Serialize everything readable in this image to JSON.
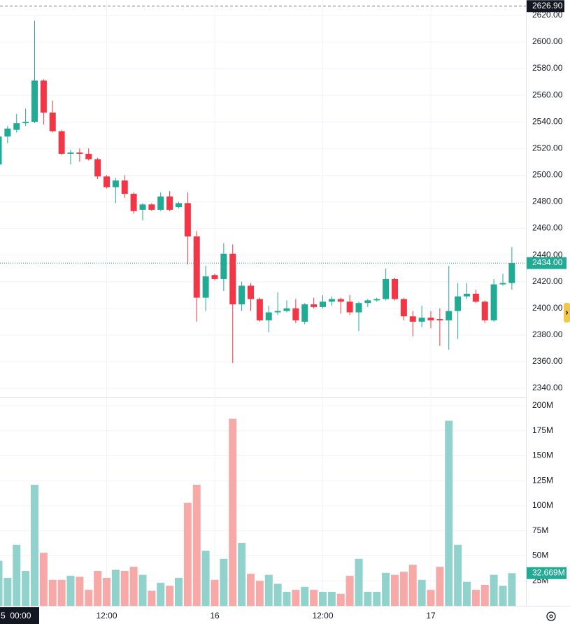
{
  "chart_data": {
    "type": "candlestick",
    "categories": [
      null,
      null,
      null,
      null,
      null,
      null,
      null,
      null,
      null,
      null,
      null,
      null,
      "12:00",
      null,
      null,
      null,
      null,
      null,
      null,
      null,
      null,
      null,
      null,
      null,
      "16",
      null,
      null,
      null,
      null,
      null,
      null,
      null,
      null,
      null,
      null,
      null,
      "12:00",
      null,
      null,
      null,
      null,
      null,
      null,
      null,
      null,
      null,
      null,
      null,
      "17",
      null,
      null,
      null,
      null,
      null,
      null,
      null,
      null,
      null
    ],
    "open": [
      2508,
      2529,
      2534,
      2539,
      2540,
      2571,
      2547,
      2533,
      2516,
      2517,
      2516,
      2512,
      2499,
      2491,
      2496,
      2486,
      2474,
      2478,
      2474,
      2484,
      2476,
      2479,
      2454,
      2408,
      2425,
      2422,
      2441,
      2403,
      2417,
      2407,
      2391,
      2397,
      2398,
      2400,
      2390,
      2403,
      2401,
      2405,
      2407,
      2405,
      2397,
      2404,
      2406,
      2407,
      2422,
      2407,
      2394,
      2390,
      2393,
      2392,
      2391,
      2398,
      2409,
      2411,
      2405,
      2391,
      2418,
      2419
    ],
    "high": [
      2532,
      2537,
      2546,
      2550,
      2616,
      2572,
      2556,
      2534,
      2519,
      2520,
      2520,
      2513,
      2500,
      2498,
      2500,
      2487,
      2479,
      2479,
      2487,
      2488,
      2480,
      2487,
      2458,
      2432,
      2426,
      2449,
      2448,
      2420,
      2419,
      2408,
      2402,
      2412,
      2406,
      2407,
      2404,
      2408,
      2410,
      2409,
      2408,
      2410,
      2405,
      2407,
      2408,
      2430,
      2423,
      2408,
      2398,
      2402,
      2398,
      2400,
      2432,
      2419,
      2419,
      2414,
      2406,
      2422,
      2426,
      2446
    ],
    "low": [
      2507,
      2524,
      2532,
      2537,
      2539,
      2538,
      2532,
      2515,
      2508,
      2510,
      2511,
      2497,
      2490,
      2479,
      2483,
      2471,
      2466,
      2473,
      2473,
      2473,
      2475,
      2433,
      2390,
      2398,
      2421,
      2413,
      2359,
      2398,
      2398,
      2390,
      2382,
      2395,
      2397,
      2389,
      2388,
      2400,
      2400,
      2402,
      2396,
      2395,
      2383,
      2401,
      2405,
      2406,
      2406,
      2391,
      2379,
      2386,
      2385,
      2372,
      2369,
      2377,
      2407,
      2404,
      2389,
      2390,
      2417,
      2414
    ],
    "close": [
      2529,
      2535,
      2539,
      2540,
      2571,
      2547,
      2533,
      2516,
      2517,
      2516,
      2512,
      2499,
      2491,
      2496,
      2486,
      2473,
      2478,
      2474,
      2484,
      2474,
      2479,
      2454,
      2408,
      2424,
      2422,
      2441,
      2403,
      2417,
      2407,
      2391,
      2397,
      2398,
      2400,
      2391,
      2403,
      2401,
      2405,
      2407,
      2405,
      2397,
      2404,
      2406,
      2407,
      2422,
      2407,
      2394,
      2390,
      2393,
      2391,
      2391,
      2398,
      2409,
      2411,
      2405,
      2391,
      2418,
      2419,
      2434
    ],
    "up_color": "#22ab94",
    "down_color": "#f23645",
    "ylim": [
      2333.2,
      2631.5
    ],
    "yticks": [
      {
        "value": 2340,
        "label": "2340.00"
      },
      {
        "value": 2360,
        "label": "2360.00"
      },
      {
        "value": 2380,
        "label": "2380.00"
      },
      {
        "value": 2400,
        "label": "2400.00"
      },
      {
        "value": 2420,
        "label": "2420.00"
      },
      {
        "value": 2440,
        "label": "2440.00"
      },
      {
        "value": 2460,
        "label": "2460.00"
      },
      {
        "value": 2480,
        "label": "2480.00"
      },
      {
        "value": 2500,
        "label": "2500.00"
      },
      {
        "value": 2520,
        "label": "2520.00"
      },
      {
        "value": 2540,
        "label": "2540.00"
      },
      {
        "value": 2560,
        "label": "2560.00"
      },
      {
        "value": 2580,
        "label": "2580.00"
      },
      {
        "value": 2600,
        "label": "2600.00"
      },
      {
        "value": 2620,
        "label": "2620.00"
      }
    ],
    "high_marker": {
      "value": 2626.9,
      "label": "2626.90"
    },
    "last_close_label": "2434.00",
    "crosshair_label": "5  00:00",
    "grid": true,
    "volume": {
      "type": "bar",
      "values": [
        45,
        28,
        61,
        35,
        121,
        53,
        26,
        26,
        30,
        29,
        16,
        35,
        28,
        36,
        35,
        39,
        31,
        15,
        23,
        20,
        28,
        103,
        121,
        55,
        26,
        47,
        187,
        63,
        32,
        25,
        31,
        22,
        14,
        16,
        19,
        16,
        14,
        14,
        12,
        30,
        47,
        14,
        14,
        33,
        31,
        34,
        41,
        26,
        16,
        39,
        185,
        61,
        24,
        16,
        21,
        31,
        20,
        32.669
      ],
      "last_value_label": "32.669M",
      "up_color": "#92d2cc",
      "down_color": "#f7a9a7",
      "ylim": [
        0,
        207
      ],
      "yticks": [
        {
          "value": 25,
          "label": "25M"
        },
        {
          "value": 50,
          "label": "50M"
        },
        {
          "value": 75,
          "label": "75M"
        },
        {
          "value": 100,
          "label": "100M"
        },
        {
          "value": 125,
          "label": "125M"
        },
        {
          "value": 150,
          "label": "150M"
        },
        {
          "value": 175,
          "label": "175M"
        },
        {
          "value": 200,
          "label": "200M"
        }
      ]
    }
  }
}
